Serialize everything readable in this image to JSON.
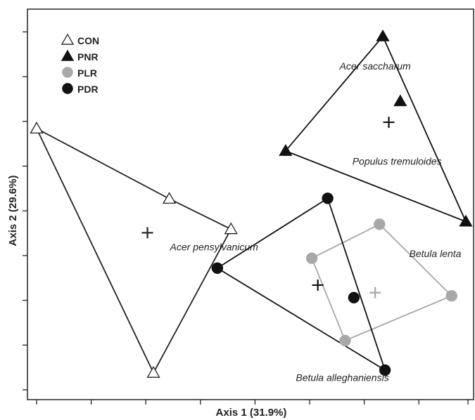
{
  "chart_data": {
    "type": "scatter",
    "title": "",
    "xlabel": "Axis 1 (31.9%)",
    "ylabel": "Axis 2 (29.6%)",
    "xlim": [
      0,
      7.9
    ],
    "ylim": [
      0,
      8.1
    ],
    "x_ticks": [
      0,
      1,
      2,
      3,
      4,
      5,
      6,
      7,
      7.9
    ],
    "y_ticks": [
      0,
      1,
      2,
      3,
      4,
      5,
      6,
      7,
      8
    ],
    "grid": false,
    "legend": "top-left",
    "series": [
      {
        "name": "CON",
        "marker": "open-triangle",
        "color": "#222222",
        "points": [
          [
            0.0,
            5.84
          ],
          [
            2.43,
            4.27
          ],
          [
            3.56,
            3.59
          ],
          [
            2.14,
            0.38
          ]
        ],
        "hull": [
          [
            0.0,
            5.84
          ],
          [
            2.43,
            4.27
          ],
          [
            3.56,
            3.59
          ],
          [
            2.14,
            0.38
          ]
        ],
        "centroid": [
          2.03,
          3.51
        ]
      },
      {
        "name": "PNR",
        "marker": "filled-triangle",
        "color": "#111111",
        "points": [
          [
            6.34,
            7.9
          ],
          [
            4.56,
            5.34
          ],
          [
            7.86,
            3.76
          ],
          [
            6.66,
            6.45
          ]
        ],
        "hull": [
          [
            6.34,
            7.9
          ],
          [
            4.56,
            5.34
          ],
          [
            7.86,
            3.76
          ]
        ],
        "centroid": [
          6.45,
          5.98
        ]
      },
      {
        "name": "PLR",
        "marker": "filled-circle",
        "color": "#a8a8a8",
        "points": [
          [
            6.28,
            3.7
          ],
          [
            5.04,
            2.94
          ],
          [
            7.6,
            2.1
          ],
          [
            5.65,
            1.1
          ]
        ],
        "hull": [
          [
            6.28,
            3.7
          ],
          [
            7.6,
            2.1
          ],
          [
            5.65,
            1.1
          ],
          [
            5.04,
            2.94
          ]
        ],
        "centroid": [
          6.2,
          2.17
        ]
      },
      {
        "name": "PDR",
        "marker": "filled-circle",
        "color": "#111111",
        "points": [
          [
            5.33,
            4.28
          ],
          [
            3.31,
            2.72
          ],
          [
            6.38,
            0.44
          ],
          [
            5.81,
            2.06
          ]
        ],
        "hull": [
          [
            5.33,
            4.28
          ],
          [
            3.31,
            2.72
          ],
          [
            6.38,
            0.44
          ]
        ],
        "centroid": [
          5.15,
          2.34
        ]
      }
    ],
    "annotations": [
      {
        "text": "Acer saccharum",
        "x": 6.2,
        "y": 7.16
      },
      {
        "text": "Populus tremuloides",
        "x": 6.6,
        "y": 5.03
      },
      {
        "text": "Acer pensylvanicum",
        "x": 3.25,
        "y": 3.12
      },
      {
        "text": "Betula lenta",
        "x": 7.3,
        "y": 2.97
      },
      {
        "text": "Betula alleghaniensis",
        "x": 5.6,
        "y": 0.2
      }
    ]
  }
}
